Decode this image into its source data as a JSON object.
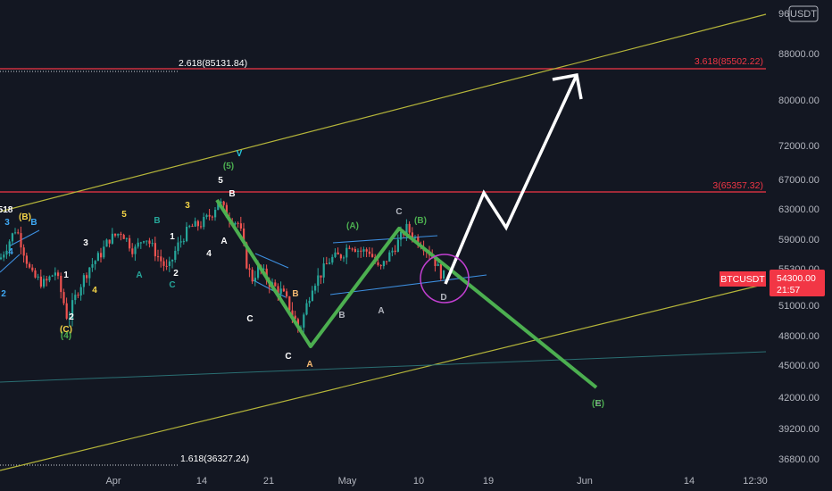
{
  "chart_data": {
    "type": "candlestick",
    "symbol": "BTCUSDT",
    "price_scale": {
      "currency": "USDT",
      "ylim": [
        35500,
        97000
      ],
      "ticks": [
        "88000.00",
        "80000.00",
        "72000.00",
        "67000.00",
        "63000.00",
        "59000.00",
        "55300.00",
        "51000.00",
        "48000.00",
        "45000.00",
        "42000.00",
        "39200.00",
        "36800.00"
      ],
      "top_partial": "96"
    },
    "time_scale": {
      "labels": [
        "Apr",
        "14",
        "21",
        "May",
        "10",
        "19",
        "Jun",
        "14",
        "12:30"
      ]
    },
    "current_price": {
      "symbol": "BTCUSDT",
      "price": "54300.00",
      "countdown": "21:57",
      "color": "#f23645"
    },
    "fib_levels": [
      {
        "label": "2.618(85131.84)",
        "price": 85131.84,
        "color": "#ffffff"
      },
      {
        "label": "3.618(85502.22)",
        "price": 85502.22,
        "color": "#f23645"
      },
      {
        "label": "3(65357.32)",
        "price": 65357.32,
        "color": "#f23645"
      },
      {
        "label": "1.618(36327.24)",
        "price": 36327.24,
        "color": "#ffffff"
      }
    ],
    "wave_labels": [
      {
        "text": "518",
        "color": "#ffffff"
      },
      {
        "text": "(B)",
        "color": "#f5d547"
      },
      {
        "text": "3",
        "color": "#3fa9f5"
      },
      {
        "text": "B",
        "color": "#3fa9f5"
      },
      {
        "text": "4",
        "color": "#3fa9f5"
      },
      {
        "text": "2",
        "color": "#3fa9f5"
      },
      {
        "text": "1",
        "color": "#ffffff"
      },
      {
        "text": "3",
        "color": "#ffffff"
      },
      {
        "text": "4",
        "color": "#f5d547"
      },
      {
        "text": "2",
        "color": "#ffffff"
      },
      {
        "text": "(C)",
        "color": "#f5d547"
      },
      {
        "text": "(4)",
        "color": "#4caf50"
      },
      {
        "text": "5",
        "color": "#f5d547"
      },
      {
        "text": "A",
        "color": "#26a69a"
      },
      {
        "text": "B",
        "color": "#26a69a"
      },
      {
        "text": "1",
        "color": "#ffffff"
      },
      {
        "text": "2",
        "color": "#ffffff"
      },
      {
        "text": "C",
        "color": "#26a69a"
      },
      {
        "text": "3",
        "color": "#f5d547"
      },
      {
        "text": "4",
        "color": "#ffffff"
      },
      {
        "text": "5",
        "color": "#ffffff"
      },
      {
        "text": "(5)",
        "color": "#4caf50"
      },
      {
        "text": "V",
        "color": "#26c6da"
      },
      {
        "text": "B",
        "color": "#ffffff"
      },
      {
        "text": "A",
        "color": "#ffffff"
      },
      {
        "text": "C",
        "color": "#ffffff"
      },
      {
        "text": "B",
        "color": "#f5b971"
      },
      {
        "text": "C",
        "color": "#ffffff"
      },
      {
        "text": "A",
        "color": "#f5b971"
      },
      {
        "text": "(A)",
        "color": "#4caf50"
      },
      {
        "text": "B",
        "color": "#b2b5be"
      },
      {
        "text": "A",
        "color": "#b2b5be"
      },
      {
        "text": "C",
        "color": "#b2b5be"
      },
      {
        "text": "(B)",
        "color": "#4caf50"
      },
      {
        "text": "D",
        "color": "#b2b5be"
      },
      {
        "text": "E",
        "color": "#b2b5be"
      },
      {
        "text": "(C)",
        "color": "#4caf50"
      }
    ],
    "colors": {
      "up": "#26a69a",
      "down": "#ef5350",
      "projection_bearish": "#4caf50",
      "projection_bullish": "#ffffff",
      "channel": "#b5b53a",
      "triangle": "#3d8fe0",
      "circle": "#c23fd1"
    }
  }
}
